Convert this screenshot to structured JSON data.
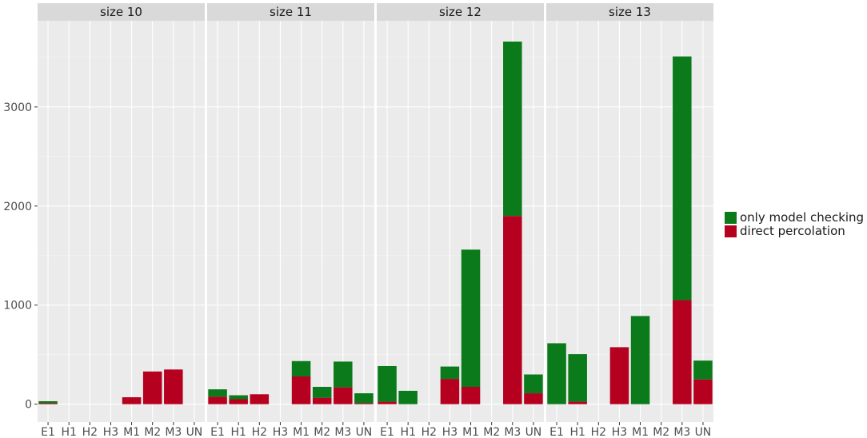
{
  "chart_data": {
    "type": "bar",
    "stacked": true,
    "facets": [
      "size 10",
      "size 11",
      "size 12",
      "size 13"
    ],
    "categories": [
      "E1",
      "H1",
      "H2",
      "H3",
      "M1",
      "M2",
      "M3",
      "UN"
    ],
    "y_ticks": [
      0,
      1000,
      2000,
      3000
    ],
    "ylim": [
      -180,
      3870
    ],
    "grid": true,
    "legend_position": "right",
    "colors": {
      "only model checking": "#0b7a1a",
      "direct percolation": "#b5001f",
      "panel_background": "#ebebeb",
      "strip_background": "#d9d9d9",
      "grid_major": "#ffffff",
      "grid_minor": "#f5f5f5"
    },
    "series": [
      {
        "name": "direct percolation",
        "values": [
          [
            10,
            0,
            0,
            0,
            70,
            330,
            350,
            0
          ],
          [
            75,
            50,
            100,
            0,
            280,
            65,
            170,
            10
          ],
          [
            25,
            0,
            0,
            255,
            175,
            0,
            1900,
            110
          ],
          [
            0,
            25,
            0,
            575,
            0,
            0,
            1050,
            250
          ]
        ]
      },
      {
        "name": "only model checking",
        "values": [
          [
            20,
            0,
            0,
            0,
            0,
            0,
            0,
            0
          ],
          [
            75,
            40,
            0,
            0,
            155,
            110,
            260,
            100
          ],
          [
            360,
            135,
            0,
            125,
            1385,
            0,
            1760,
            190
          ],
          [
            615,
            480,
            0,
            0,
            890,
            0,
            2460,
            190
          ]
        ]
      }
    ]
  }
}
